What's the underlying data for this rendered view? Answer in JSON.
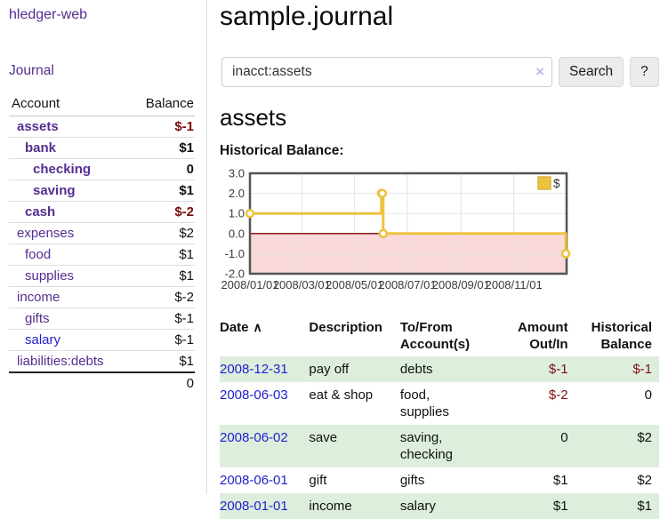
{
  "sidebar": {
    "app_title": "hledger-web",
    "journal_link": "Journal",
    "accounts": {
      "header_account": "Account",
      "header_balance": "Balance",
      "rows": [
        {
          "name": "assets",
          "depth": 0,
          "bold": true,
          "blue": false,
          "balance": "$-1",
          "negative": true
        },
        {
          "name": "bank",
          "depth": 1,
          "bold": true,
          "blue": false,
          "balance": "$1",
          "negative": false
        },
        {
          "name": "checking",
          "depth": 2,
          "bold": true,
          "blue": false,
          "balance": "0",
          "negative": false
        },
        {
          "name": "saving",
          "depth": 2,
          "bold": true,
          "blue": false,
          "balance": "$1",
          "negative": false
        },
        {
          "name": "cash",
          "depth": 1,
          "bold": true,
          "blue": false,
          "balance": "$-2",
          "negative": true
        },
        {
          "name": "expenses",
          "depth": 0,
          "bold": false,
          "blue": false,
          "balance": "$2",
          "negative": false
        },
        {
          "name": "food",
          "depth": 1,
          "bold": false,
          "blue": false,
          "balance": "$1",
          "negative": false
        },
        {
          "name": "supplies",
          "depth": 1,
          "bold": false,
          "blue": false,
          "balance": "$1",
          "negative": false
        },
        {
          "name": "income",
          "depth": 0,
          "bold": false,
          "blue": false,
          "balance": "$-2",
          "negative": true
        },
        {
          "name": "gifts",
          "depth": 1,
          "bold": false,
          "blue": false,
          "balance": "$-1",
          "negative": true
        },
        {
          "name": "salary",
          "depth": 1,
          "bold": false,
          "blue": true,
          "balance": "$-1",
          "negative": true
        },
        {
          "name": "liabilities:debts",
          "depth": 0,
          "bold": false,
          "blue": false,
          "balance": "$1",
          "negative": false
        }
      ],
      "total": "0"
    }
  },
  "main": {
    "title": "sample.journal",
    "search": {
      "value": "inacct:assets",
      "clear_icon": "×",
      "button_label": "Search",
      "help_label": "?"
    },
    "account_heading": "assets",
    "chart_label": "Historical Balance:",
    "register": {
      "headers": {
        "date": "Date",
        "description": "Description",
        "accounts": "To/From Account(s)",
        "amount": "Amount Out/In",
        "balance": "Historical Balance"
      },
      "sort_icon": "∧",
      "rows": [
        {
          "date": "2008-12-31",
          "description": "pay off",
          "accounts": "debts",
          "amount": "$-1",
          "amount_neg": true,
          "balance": "$-1",
          "balance_neg": true
        },
        {
          "date": "2008-06-03",
          "description": "eat & shop",
          "accounts": "food, supplies",
          "amount": "$-2",
          "amount_neg": true,
          "balance": "0",
          "balance_neg": false
        },
        {
          "date": "2008-06-02",
          "description": "save",
          "accounts": "saving, checking",
          "amount": "0",
          "amount_neg": false,
          "balance": "$2",
          "balance_neg": false
        },
        {
          "date": "2008-06-01",
          "description": "gift",
          "accounts": "gifts",
          "amount": "$1",
          "amount_neg": false,
          "balance": "$2",
          "balance_neg": false
        },
        {
          "date": "2008-01-01",
          "description": "income",
          "accounts": "salary",
          "amount": "$1",
          "amount_neg": false,
          "balance": "$1",
          "balance_neg": false
        }
      ]
    }
  },
  "colors": {
    "link_purple": "#552e91",
    "link_blue": "#2222cc",
    "negative_strong": "#7a0b0b",
    "negative_muted": "#b97c7c",
    "row_stripe_green": "#ddeedd",
    "chart_line": "#edc240",
    "chart_negative_fill": "#f9d9d9",
    "chart_zero_line": "#800000",
    "chart_border": "#545454"
  },
  "chart_data": {
    "type": "line",
    "title": "Historical Balance",
    "step": true,
    "legend": "$",
    "legend_position": "top-right",
    "grid": true,
    "x_range": [
      "2008-01-01",
      "2009-01-01"
    ],
    "ylim": [
      -2,
      3
    ],
    "y_ticks": [
      3.0,
      2.0,
      1.0,
      0.0,
      -1.0,
      -2.0
    ],
    "x_ticks": [
      "2008/01/01",
      "2008/03/01",
      "2008/05/01",
      "2008/07/01",
      "2008/09/01",
      "2008/11/01"
    ],
    "series": [
      {
        "name": "$",
        "color": "#edc240",
        "points": [
          [
            "2008-01-01",
            1
          ],
          [
            "2008-06-01",
            2
          ],
          [
            "2008-06-02",
            2
          ],
          [
            "2008-06-03",
            0
          ],
          [
            "2008-12-31",
            -1
          ]
        ]
      }
    ],
    "negative_region_color": "#f9d9d9",
    "zero_line_color": "#800000"
  }
}
